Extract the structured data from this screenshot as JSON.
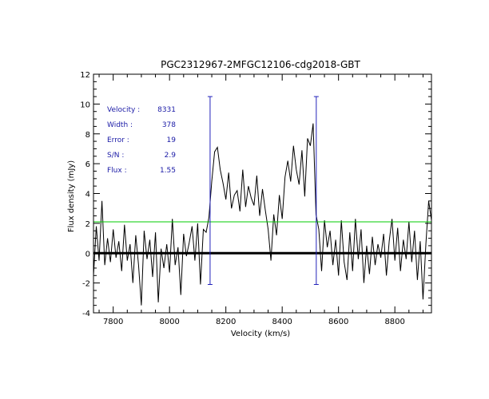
{
  "chart_data": {
    "type": "line",
    "title": "PGC2312967-2MFGC12106-cdg2018-GBT",
    "xlabel": "Velocity (km/s)",
    "ylabel": "Flux density (mJy)",
    "xlim": [
      7730,
      8930
    ],
    "ylim": [
      -4,
      12
    ],
    "x_ticks": [
      7800,
      8000,
      8200,
      8400,
      8600,
      8800
    ],
    "y_ticks": [
      -4,
      -2,
      0,
      2,
      4,
      6,
      8,
      10,
      12
    ],
    "zero_line": 0,
    "baseline_level": 2.1,
    "width_markers": [
      8144,
      8521
    ],
    "marker_range": [
      -2.1,
      10.5
    ],
    "series": [
      {
        "name": "spectrum",
        "x": [
          7730,
          7740,
          7750,
          7760,
          7770,
          7780,
          7790,
          7800,
          7810,
          7820,
          7830,
          7840,
          7850,
          7860,
          7870,
          7880,
          7890,
          7900,
          7910,
          7920,
          7930,
          7940,
          7950,
          7960,
          7970,
          7980,
          7990,
          8000,
          8010,
          8020,
          8030,
          8040,
          8050,
          8060,
          8070,
          8080,
          8090,
          8100,
          8110,
          8120,
          8130,
          8140,
          8150,
          8160,
          8170,
          8180,
          8190,
          8200,
          8210,
          8220,
          8230,
          8240,
          8250,
          8260,
          8270,
          8280,
          8290,
          8300,
          8310,
          8320,
          8330,
          8340,
          8350,
          8360,
          8370,
          8380,
          8390,
          8400,
          8410,
          8420,
          8430,
          8440,
          8450,
          8460,
          8470,
          8480,
          8490,
          8500,
          8510,
          8520,
          8530,
          8540,
          8550,
          8560,
          8570,
          8580,
          8590,
          8600,
          8610,
          8620,
          8630,
          8640,
          8650,
          8660,
          8670,
          8680,
          8690,
          8700,
          8710,
          8720,
          8730,
          8740,
          8750,
          8760,
          8770,
          8780,
          8790,
          8800,
          8810,
          8820,
          8830,
          8840,
          8850,
          8860,
          8870,
          8880,
          8890,
          8900,
          8910,
          8920,
          8930
        ],
        "y": [
          -1.5,
          1.8,
          -0.5,
          3.5,
          -0.8,
          1.0,
          -0.6,
          1.6,
          -0.3,
          0.8,
          -1.2,
          1.9,
          -0.5,
          0.6,
          -2.0,
          1.2,
          -0.8,
          -3.5,
          1.5,
          -0.4,
          0.9,
          -1.6,
          1.4,
          -3.3,
          0.3,
          -1.0,
          0.6,
          -1.3,
          2.3,
          -0.8,
          0.4,
          -2.8,
          1.3,
          -0.2,
          0.7,
          1.8,
          -0.5,
          2.0,
          -2.1,
          1.6,
          1.4,
          2.4,
          4.8,
          6.8,
          7.1,
          5.6,
          4.7,
          3.6,
          5.4,
          3.0,
          3.9,
          4.2,
          2.8,
          5.6,
          3.1,
          4.5,
          3.7,
          3.2,
          5.2,
          2.5,
          4.3,
          2.9,
          1.6,
          -0.5,
          2.6,
          1.2,
          3.9,
          2.3,
          5.1,
          6.2,
          4.8,
          7.2,
          5.6,
          4.6,
          6.9,
          3.8,
          7.7,
          7.2,
          8.7,
          2.6,
          1.6,
          -1.2,
          2.2,
          0.4,
          1.5,
          -0.8,
          0.9,
          -1.5,
          2.2,
          -0.6,
          -1.8,
          1.4,
          -1.2,
          2.3,
          -0.4,
          1.6,
          -2.0,
          0.5,
          -1.4,
          1.1,
          -0.8,
          0.6,
          -0.3,
          1.3,
          -1.5,
          0.8,
          2.3,
          -0.5,
          1.7,
          -1.2,
          0.9,
          -0.4,
          2.1,
          -0.6,
          1.5,
          -1.8,
          0.8,
          -3.1,
          0.6,
          3.5,
          2.2
        ]
      }
    ],
    "stats": [
      {
        "label": "Velocity :",
        "value": "8331"
      },
      {
        "label": "Width    :",
        "value": "378"
      },
      {
        "label": "Error    :",
        "value": "19"
      },
      {
        "label": "S/N      :",
        "value": "2.9"
      },
      {
        "label": "Flux     :",
        "value": "1.55"
      }
    ],
    "colors": {
      "spectrum": "#000000",
      "zero_line": "#000000",
      "baseline": "#00cc00",
      "markers": "#2222bb",
      "stats_text": "#1a1aa6"
    }
  }
}
